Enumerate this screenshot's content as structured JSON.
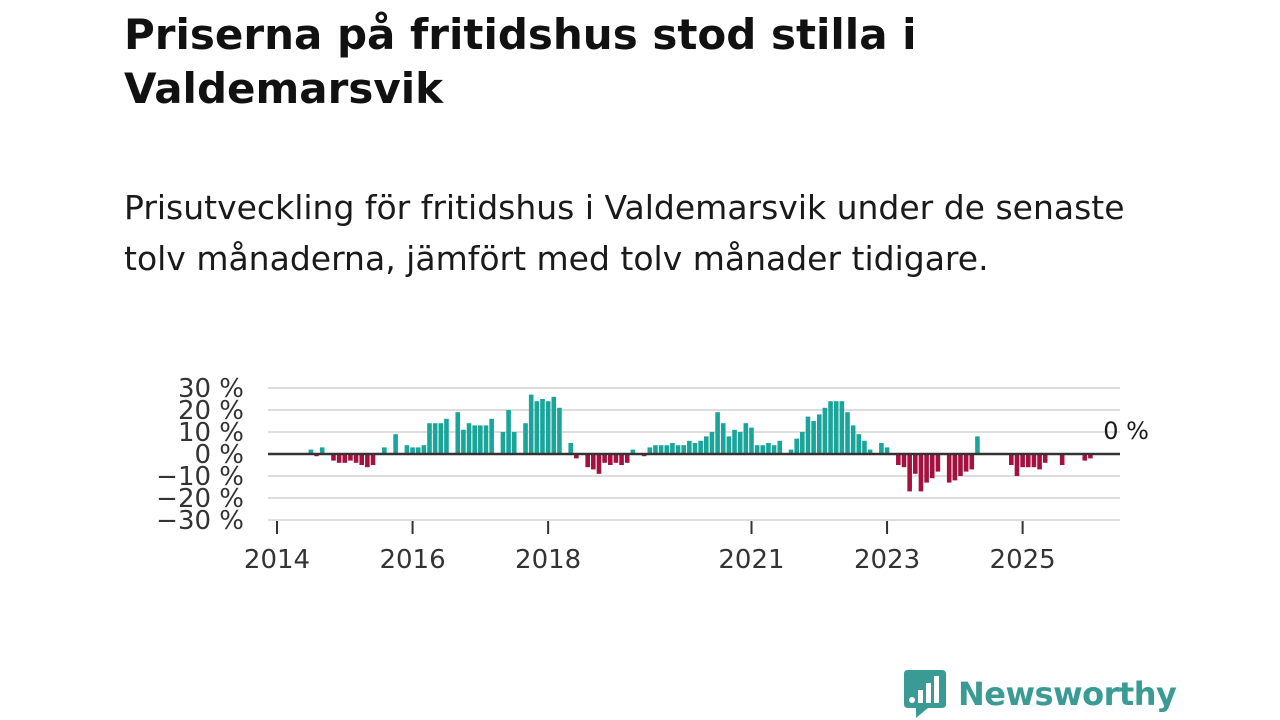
{
  "header": {
    "title": "Priserna på fritidshus stod stilla i Valdemarsvik",
    "subtitle": "Prisutveckling för fritidshus i Valdemarsvik under de senaste tolv månaderna, jämfört med tolv månader tidigare."
  },
  "brand": {
    "name": "Newsworthy",
    "color": "#3a9b95",
    "icon": "newsworthy-chart-bubble-icon"
  },
  "colors": {
    "positive": "#1aa59a",
    "negative": "#a5113f",
    "zero_line": "#333333",
    "grid": "#dddddd"
  },
  "chart_data": {
    "type": "bar",
    "x_start": "2014-01",
    "x_end": "2026-05",
    "x_ticks": [
      {
        "label": "2014",
        "date": "2014-01"
      },
      {
        "label": "2016",
        "date": "2016-01"
      },
      {
        "label": "2018",
        "date": "2018-01"
      },
      {
        "label": "2021",
        "date": "2021-01"
      },
      {
        "label": "2023",
        "date": "2023-01"
      },
      {
        "label": "2025",
        "date": "2025-01"
      }
    ],
    "y_ticks": [
      {
        "label": "30 %",
        "value": 30
      },
      {
        "label": "20 %",
        "value": 20
      },
      {
        "label": "10 %",
        "value": 10
      },
      {
        "label": "0 %",
        "value": 0
      },
      {
        "label": "−10 %",
        "value": -10
      },
      {
        "label": "−20 %",
        "value": -20
      },
      {
        "label": "−30 %",
        "value": -30
      }
    ],
    "ylim": [
      -30,
      30
    ],
    "grid": true,
    "last_value_label": "0 %",
    "series": [
      {
        "unit": "%",
        "points": [
          {
            "date": "2014-07",
            "value": 2
          },
          {
            "date": "2014-08",
            "value": -1
          },
          {
            "date": "2014-09",
            "value": 3
          },
          {
            "date": "2014-11",
            "value": -3
          },
          {
            "date": "2014-12",
            "value": -4
          },
          {
            "date": "2015-01",
            "value": -4
          },
          {
            "date": "2015-02",
            "value": -3
          },
          {
            "date": "2015-03",
            "value": -4
          },
          {
            "date": "2015-04",
            "value": -5
          },
          {
            "date": "2015-05",
            "value": -6
          },
          {
            "date": "2015-06",
            "value": -5
          },
          {
            "date": "2015-08",
            "value": 3
          },
          {
            "date": "2015-10",
            "value": 9
          },
          {
            "date": "2015-12",
            "value": 4
          },
          {
            "date": "2016-01",
            "value": 3
          },
          {
            "date": "2016-02",
            "value": 3
          },
          {
            "date": "2016-03",
            "value": 4
          },
          {
            "date": "2016-04",
            "value": 14
          },
          {
            "date": "2016-05",
            "value": 14
          },
          {
            "date": "2016-06",
            "value": 14
          },
          {
            "date": "2016-07",
            "value": 16
          },
          {
            "date": "2016-09",
            "value": 19
          },
          {
            "date": "2016-10",
            "value": 11
          },
          {
            "date": "2016-11",
            "value": 14
          },
          {
            "date": "2016-12",
            "value": 13
          },
          {
            "date": "2017-01",
            "value": 13
          },
          {
            "date": "2017-02",
            "value": 13
          },
          {
            "date": "2017-03",
            "value": 16
          },
          {
            "date": "2017-05",
            "value": 10
          },
          {
            "date": "2017-06",
            "value": 20
          },
          {
            "date": "2017-07",
            "value": 10
          },
          {
            "date": "2017-09",
            "value": 14
          },
          {
            "date": "2017-10",
            "value": 27
          },
          {
            "date": "2017-11",
            "value": 24
          },
          {
            "date": "2017-12",
            "value": 25
          },
          {
            "date": "2018-01",
            "value": 24
          },
          {
            "date": "2018-02",
            "value": 26
          },
          {
            "date": "2018-03",
            "value": 21
          },
          {
            "date": "2018-05",
            "value": 5
          },
          {
            "date": "2018-06",
            "value": -2
          },
          {
            "date": "2018-08",
            "value": -6
          },
          {
            "date": "2018-09",
            "value": -7
          },
          {
            "date": "2018-10",
            "value": -9
          },
          {
            "date": "2018-11",
            "value": -4
          },
          {
            "date": "2018-12",
            "value": -5
          },
          {
            "date": "2019-01",
            "value": -4
          },
          {
            "date": "2019-02",
            "value": -5
          },
          {
            "date": "2019-03",
            "value": -4
          },
          {
            "date": "2019-04",
            "value": 2
          },
          {
            "date": "2019-06",
            "value": -1
          },
          {
            "date": "2019-07",
            "value": 3
          },
          {
            "date": "2019-08",
            "value": 4
          },
          {
            "date": "2019-09",
            "value": 4
          },
          {
            "date": "2019-10",
            "value": 4
          },
          {
            "date": "2019-11",
            "value": 5
          },
          {
            "date": "2019-12",
            "value": 4
          },
          {
            "date": "2020-01",
            "value": 4
          },
          {
            "date": "2020-02",
            "value": 6
          },
          {
            "date": "2020-03",
            "value": 5
          },
          {
            "date": "2020-04",
            "value": 6
          },
          {
            "date": "2020-05",
            "value": 8
          },
          {
            "date": "2020-06",
            "value": 10
          },
          {
            "date": "2020-07",
            "value": 19
          },
          {
            "date": "2020-08",
            "value": 14
          },
          {
            "date": "2020-09",
            "value": 8
          },
          {
            "date": "2020-10",
            "value": 11
          },
          {
            "date": "2020-11",
            "value": 10
          },
          {
            "date": "2020-12",
            "value": 14
          },
          {
            "date": "2021-01",
            "value": 12
          },
          {
            "date": "2021-02",
            "value": 4
          },
          {
            "date": "2021-03",
            "value": 4
          },
          {
            "date": "2021-04",
            "value": 5
          },
          {
            "date": "2021-05",
            "value": 4
          },
          {
            "date": "2021-06",
            "value": 6
          },
          {
            "date": "2021-08",
            "value": 2
          },
          {
            "date": "2021-09",
            "value": 7
          },
          {
            "date": "2021-10",
            "value": 10
          },
          {
            "date": "2021-11",
            "value": 17
          },
          {
            "date": "2021-12",
            "value": 15
          },
          {
            "date": "2022-01",
            "value": 18
          },
          {
            "date": "2022-02",
            "value": 21
          },
          {
            "date": "2022-03",
            "value": 24
          },
          {
            "date": "2022-04",
            "value": 24
          },
          {
            "date": "2022-05",
            "value": 24
          },
          {
            "date": "2022-06",
            "value": 19
          },
          {
            "date": "2022-07",
            "value": 13
          },
          {
            "date": "2022-08",
            "value": 9
          },
          {
            "date": "2022-09",
            "value": 6
          },
          {
            "date": "2022-10",
            "value": 2
          },
          {
            "date": "2022-12",
            "value": 5
          },
          {
            "date": "2023-01",
            "value": 3
          },
          {
            "date": "2023-03",
            "value": -5
          },
          {
            "date": "2023-04",
            "value": -6
          },
          {
            "date": "2023-05",
            "value": -17
          },
          {
            "date": "2023-06",
            "value": -9
          },
          {
            "date": "2023-07",
            "value": -17
          },
          {
            "date": "2023-08",
            "value": -13
          },
          {
            "date": "2023-09",
            "value": -11
          },
          {
            "date": "2023-10",
            "value": -8
          },
          {
            "date": "2023-12",
            "value": -13
          },
          {
            "date": "2024-01",
            "value": -12
          },
          {
            "date": "2024-02",
            "value": -10
          },
          {
            "date": "2024-03",
            "value": -8
          },
          {
            "date": "2024-04",
            "value": -7
          },
          {
            "date": "2024-05",
            "value": 8
          },
          {
            "date": "2024-11",
            "value": -5
          },
          {
            "date": "2024-12",
            "value": -10
          },
          {
            "date": "2025-01",
            "value": -6
          },
          {
            "date": "2025-02",
            "value": -6
          },
          {
            "date": "2025-03",
            "value": -6
          },
          {
            "date": "2025-04",
            "value": -7
          },
          {
            "date": "2025-05",
            "value": -4
          },
          {
            "date": "2025-08",
            "value": -5
          },
          {
            "date": "2025-12",
            "value": -3
          },
          {
            "date": "2026-01",
            "value": -2
          },
          {
            "date": "2026-02",
            "value": 0
          }
        ]
      }
    ]
  }
}
